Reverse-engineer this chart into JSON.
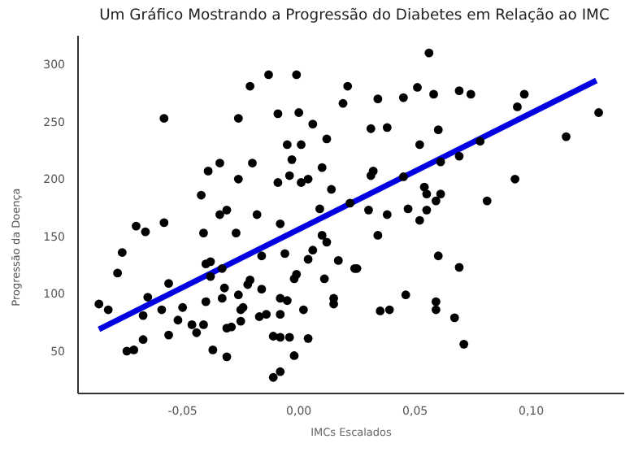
{
  "chart_data": {
    "type": "scatter",
    "title": "Um Gráfico Mostrando a Progressão do Diabetes em Relação ao IMC",
    "xlabel": "IMCs Escalados",
    "ylabel": "Progressão da Doença",
    "xlim": [
      -0.095,
      0.14
    ],
    "ylim": [
      13,
      325
    ],
    "xticks": [
      {
        "value": -0.05,
        "label": "-0,05"
      },
      {
        "value": 0,
        "label": "0,00"
      },
      {
        "value": 0.05,
        "label": "0,05"
      },
      {
        "value": 0.1,
        "label": "0,10"
      }
    ],
    "yticks": [
      50,
      100,
      150,
      200,
      250,
      300
    ],
    "series": [
      {
        "marker": "circle",
        "color": "#000000",
        "x": [
          -0.086,
          -0.082,
          -0.078,
          -0.076,
          -0.074,
          -0.071,
          -0.07,
          -0.067,
          -0.066,
          -0.067,
          -0.065,
          -0.059,
          -0.058,
          -0.058,
          -0.056,
          -0.056,
          -0.05,
          -0.052,
          -0.046,
          -0.044,
          -0.042,
          -0.041,
          -0.041,
          -0.04,
          -0.04,
          -0.039,
          -0.038,
          -0.038,
          -0.037,
          -0.034,
          -0.034,
          -0.031,
          -0.031,
          -0.032,
          -0.033,
          -0.031,
          -0.033,
          -0.029,
          -0.027,
          -0.026,
          -0.026,
          -0.026,
          -0.025,
          -0.025,
          -0.024,
          -0.022,
          -0.021,
          -0.021,
          -0.02,
          -0.018,
          -0.017,
          -0.016,
          -0.016,
          -0.014,
          -0.013,
          -0.011,
          -0.011,
          -0.009,
          -0.009,
          -0.008,
          -0.008,
          -0.008,
          -0.008,
          -0.008,
          -0.006,
          -0.005,
          -0.005,
          -0.003,
          -0.004,
          -0.004,
          -0.002,
          -0.001,
          -0.002,
          -0.001,
          0.0,
          0.001,
          0.001,
          0.004,
          0.002,
          0.004,
          0.004,
          0.006,
          0.006,
          0.009,
          0.01,
          0.01,
          0.011,
          0.012,
          0.012,
          0.014,
          0.015,
          0.015,
          0.017,
          0.019,
          0.021,
          0.022,
          0.024,
          0.025,
          0.03,
          0.031,
          0.031,
          0.032,
          0.034,
          0.034,
          0.035,
          0.038,
          0.039,
          0.038,
          0.045,
          0.045,
          0.046,
          0.047,
          0.051,
          0.052,
          0.052,
          0.054,
          0.055,
          0.055,
          0.058,
          0.059,
          0.059,
          0.059,
          0.06,
          0.06,
          0.061,
          0.061,
          0.067,
          0.069,
          0.069,
          0.069,
          0.071,
          0.074,
          0.078,
          0.081,
          0.093,
          0.094,
          0.097,
          0.115,
          0.129,
          0.056
        ],
        "values": [
          91,
          86,
          118,
          136,
          50,
          51,
          159,
          81,
          154,
          60,
          97,
          86,
          253,
          162,
          64,
          109,
          88,
          77,
          73,
          66,
          186,
          153,
          73,
          126,
          93,
          207,
          128,
          115,
          51,
          214,
          169,
          173,
          45,
          105,
          96,
          70,
          122,
          71,
          153,
          99,
          253,
          200,
          76,
          86,
          88,
          108,
          281,
          112,
          214,
          169,
          80,
          104,
          133,
          82,
          291,
          27,
          63,
          257,
          197,
          32,
          62,
          96,
          82,
          161,
          135,
          230,
          94,
          217,
          203,
          62,
          46,
          291,
          113,
          117,
          258,
          197,
          230,
          200,
          86,
          61,
          130,
          138,
          248,
          174,
          210,
          151,
          113,
          235,
          145,
          191,
          96,
          91,
          129,
          266,
          281,
          179,
          122,
          122,
          173,
          244,
          203,
          207,
          151,
          270,
          85,
          169,
          86,
          245,
          271,
          202,
          99,
          174,
          280,
          164,
          230,
          193,
          187,
          173,
          274,
          181,
          93,
          86,
          133,
          243,
          215,
          187,
          79,
          123,
          277,
          220,
          56,
          274,
          233,
          181,
          200,
          263,
          274,
          237,
          258,
          310
        ]
      },
      {
        "type": "line",
        "color": "#0000e0",
        "x": [
          -0.086,
          0.128
        ],
        "values": [
          69,
          286
        ]
      }
    ]
  }
}
